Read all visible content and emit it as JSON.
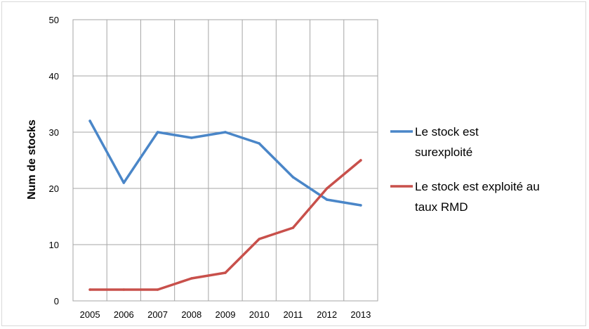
{
  "chart_data": {
    "type": "line",
    "title": "",
    "xlabel": "",
    "ylabel": "Num de stocks",
    "ylim": [
      0,
      50
    ],
    "yticks": [
      0,
      10,
      20,
      30,
      40,
      50
    ],
    "categories": [
      "2005",
      "2006",
      "2007",
      "2008",
      "2009",
      "2010",
      "2011",
      "2012",
      "2013"
    ],
    "grid": true,
    "legend_position": "right",
    "series": [
      {
        "name": "Le stock est surexploité",
        "legend_lines": [
          "Le stock est",
          "surexploité"
        ],
        "color": "#4a86c8",
        "values": [
          32,
          21,
          30,
          29,
          30,
          28,
          22,
          18,
          17
        ]
      },
      {
        "name": "Le stock est exploité au taux RMD",
        "legend_lines": [
          "Le stock est exploité au",
          "taux RMD"
        ],
        "color": "#c8504b",
        "values": [
          2,
          2,
          2,
          4,
          5,
          11,
          13,
          20,
          25
        ]
      }
    ]
  }
}
